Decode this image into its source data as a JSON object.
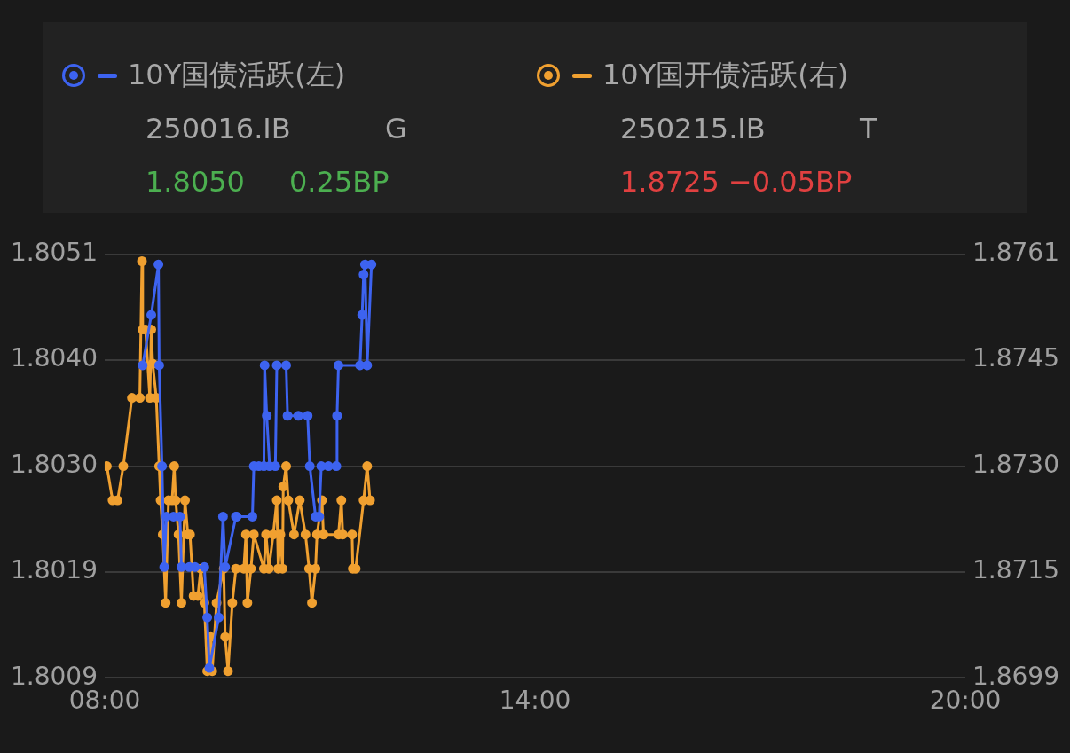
{
  "chart_data": {
    "type": "line",
    "legend": "top",
    "marker": "circle",
    "line_style": "solid",
    "grid": "y",
    "annotations": [
      "250016.IB",
      "G",
      "1.8050",
      "0.25BP",
      "250215.IB",
      "T",
      "1.8725",
      "−0.05BP"
    ],
    "xlim": [
      8,
      20
    ],
    "xticks": [
      {
        "value": 8,
        "label": "08:00"
      },
      {
        "value": 14,
        "label": "14:00"
      },
      {
        "value": 20,
        "label": "20:00"
      }
    ],
    "ylim": [
      1.8009,
      1.8051
    ],
    "yticks": [
      {
        "value": 1.8009,
        "label": "1.8009"
      },
      {
        "value": 1.80195,
        "label": "1.8019"
      },
      {
        "value": 1.803,
        "label": "1.8030"
      },
      {
        "value": 1.80405,
        "label": "1.8040"
      },
      {
        "value": 1.8051,
        "label": "1.8051"
      }
    ],
    "y2lim": [
      1.8699,
      1.8761
    ],
    "y2ticks": [
      {
        "value": 1.8699,
        "label": "1.8699"
      },
      {
        "value": 1.87145,
        "label": "1.8715"
      },
      {
        "value": 1.873,
        "label": "1.8730"
      },
      {
        "value": 1.87455,
        "label": "1.8745"
      },
      {
        "value": 1.8761,
        "label": "1.8761"
      }
    ],
    "series": [
      {
        "name": "10Y国债活跃(左)",
        "color": "#3d63f0",
        "x": [
          8.53,
          8.65,
          8.75,
          8.76,
          8.8,
          8.83,
          8.86,
          8.96,
          9.05,
          9.07,
          9.18,
          9.26,
          9.39,
          9.43,
          9.46,
          9.59,
          9.65,
          9.68,
          9.83,
          9.84,
          10.06,
          10.08,
          10.15,
          10.22,
          10.23,
          10.26,
          10.3,
          10.38,
          10.4,
          10.53,
          10.55,
          10.7,
          10.83,
          10.86,
          10.94,
          10.99,
          11.02,
          11.12,
          11.23,
          11.24,
          11.26,
          11.56,
          11.59,
          11.61,
          11.63,
          11.66,
          11.72
        ],
        "values": [
          1.804,
          1.8045,
          1.805,
          1.804,
          1.803,
          1.802,
          1.8025,
          1.8025,
          1.8025,
          1.802,
          1.802,
          1.802,
          1.802,
          1.8015,
          1.801,
          1.8015,
          1.8025,
          1.802,
          1.8025,
          1.8025,
          1.8025,
          1.803,
          1.803,
          1.803,
          1.804,
          1.8035,
          1.803,
          1.803,
          1.804,
          1.804,
          1.8035,
          1.8035,
          1.8035,
          1.803,
          1.8025,
          1.8025,
          1.803,
          1.803,
          1.803,
          1.8035,
          1.804,
          1.804,
          1.8045,
          1.8049,
          1.805,
          1.804,
          1.805
        ]
      },
      {
        "name": "10Y国开债活跃(右)",
        "color": "#f0a030",
        "axis": "y2",
        "x": [
          8.03,
          8.11,
          8.18,
          8.26,
          8.38,
          8.49,
          8.52,
          8.53,
          8.57,
          8.63,
          8.65,
          8.67,
          8.72,
          8.76,
          8.78,
          8.81,
          8.85,
          8.89,
          8.94,
          8.97,
          8.99,
          9.03,
          9.07,
          9.12,
          9.16,
          9.19,
          9.24,
          9.3,
          9.34,
          9.39,
          9.43,
          9.48,
          9.5,
          9.56,
          9.66,
          9.68,
          9.72,
          9.78,
          9.83,
          9.94,
          9.97,
          9.99,
          10.04,
          10.08,
          10.22,
          10.25,
          10.29,
          10.35,
          10.4,
          10.42,
          10.45,
          10.48,
          10.49,
          10.53,
          10.56,
          10.64,
          10.72,
          10.8,
          10.85,
          10.89,
          10.94,
          10.96,
          11.03,
          11.05,
          11.26,
          11.3,
          11.32,
          11.45,
          11.46,
          11.5,
          11.61,
          11.66,
          11.7
        ],
        "values": [
          1.873,
          1.8725,
          1.8725,
          1.873,
          1.874,
          1.874,
          1.876,
          1.875,
          1.875,
          1.874,
          1.875,
          1.8745,
          1.874,
          1.873,
          1.8725,
          1.872,
          1.871,
          1.8725,
          1.8725,
          1.873,
          1.8725,
          1.872,
          1.871,
          1.8725,
          1.872,
          1.872,
          1.8711,
          1.8711,
          1.8715,
          1.871,
          1.87,
          1.8705,
          1.87,
          1.871,
          1.8715,
          1.8705,
          1.87,
          1.871,
          1.8715,
          1.8715,
          1.872,
          1.871,
          1.8715,
          1.872,
          1.8715,
          1.872,
          1.8715,
          1.872,
          1.8725,
          1.8715,
          1.872,
          1.8715,
          1.8727,
          1.873,
          1.8725,
          1.872,
          1.8725,
          1.872,
          1.8715,
          1.871,
          1.8715,
          1.872,
          1.8725,
          1.872,
          1.872,
          1.8725,
          1.872,
          1.872,
          1.8715,
          1.8715,
          1.8725,
          1.873,
          1.8725
        ]
      }
    ]
  }
}
